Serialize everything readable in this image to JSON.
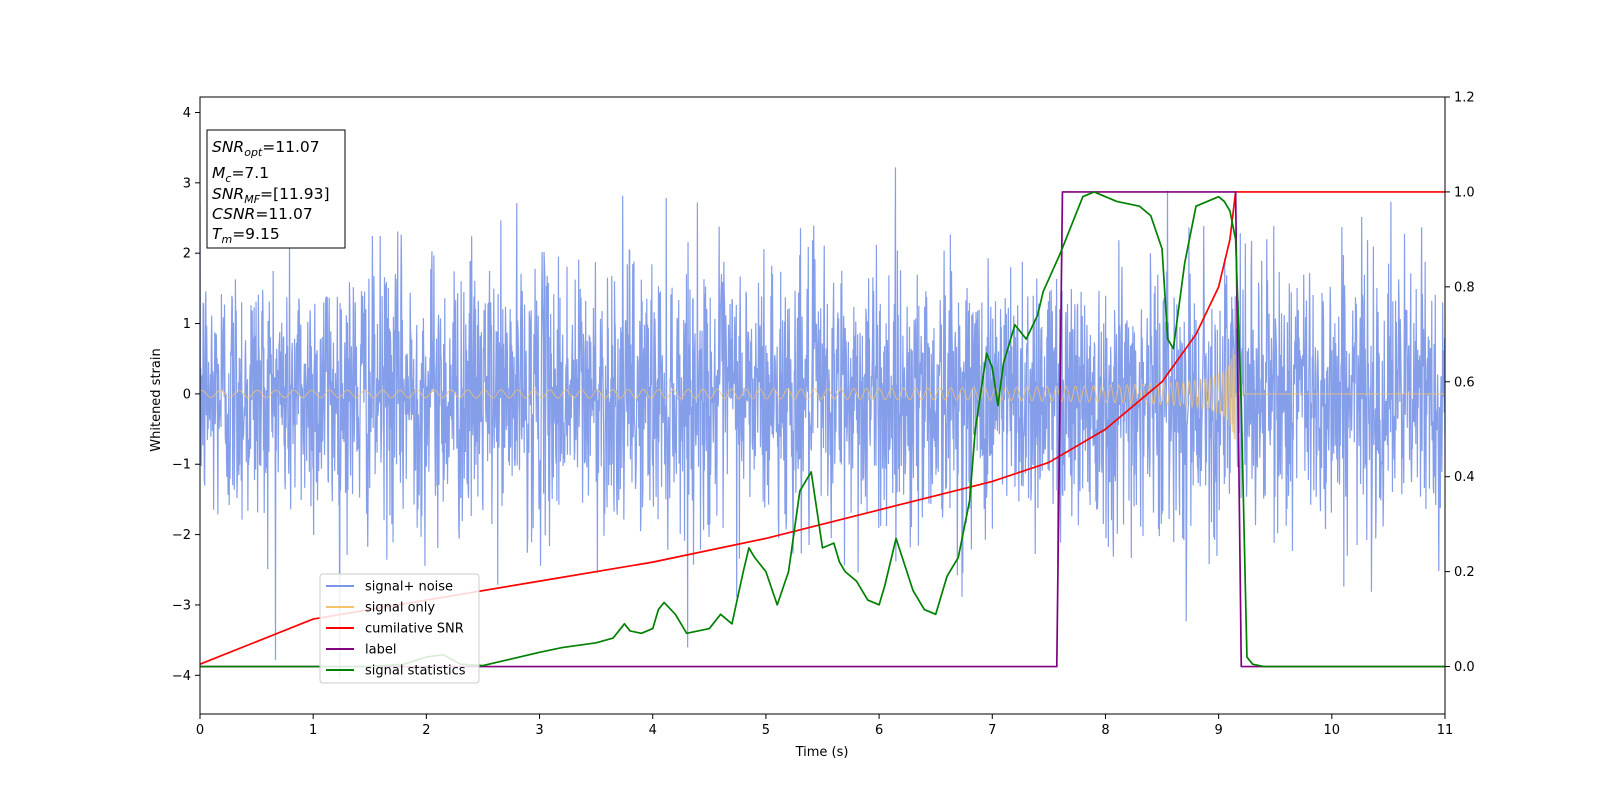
{
  "chart_data": {
    "type": "line",
    "title": "",
    "xlabel": "Time (s)",
    "ylabel": "Whitened strain",
    "xlim": [
      0,
      11
    ],
    "ylim": [
      -4.55,
      4.22
    ],
    "y2lim": [
      -0.1,
      1.2
    ],
    "grid": false,
    "legend_position": "lower-left",
    "xticks": [
      "0",
      "1",
      "2",
      "3",
      "4",
      "5",
      "6",
      "7",
      "8",
      "9",
      "10",
      "11"
    ],
    "yticks": [
      "−4",
      "−3",
      "−2",
      "−1",
      "0",
      "1",
      "2",
      "3",
      "4"
    ],
    "y2ticks": [
      "0.0",
      "0.2",
      "0.4",
      "0.6",
      "0.8",
      "1.0",
      "1.2"
    ],
    "annotation": {
      "lines": [
        {
          "base": "SNR",
          "sub": "opt",
          "value": "=11.07"
        },
        {
          "base": "M",
          "sub": "c",
          "value": "=7.1"
        },
        {
          "base": "SNR",
          "sub": "MF",
          "value": "=[11.93]"
        },
        {
          "base": "CSNR",
          "sub": "",
          "value": "=11.07"
        },
        {
          "base": "T",
          "sub": "m",
          "value": "=9.15"
        }
      ]
    },
    "series": [
      {
        "name": "signal+ noise",
        "color": "#7b96e8",
        "axis": "left",
        "kind": "noise_band",
        "noise_sigma": 1.0,
        "t_end": 11
      },
      {
        "name": "signal only",
        "color": "#f5c36a",
        "axis": "left",
        "kind": "chirp",
        "amp_start": 0.05,
        "amp_peak": 0.9,
        "t_merge": 9.15
      },
      {
        "name": "cumilative SNR",
        "color": "#ff0000",
        "axis": "right",
        "kind": "line",
        "x": [
          0,
          1,
          2,
          3,
          4,
          5,
          6,
          6.5,
          7,
          7.5,
          8,
          8.5,
          8.8,
          9.0,
          9.1,
          9.15,
          11
        ],
        "y": [
          0.005,
          0.1,
          0.14,
          0.18,
          0.22,
          0.27,
          0.33,
          0.36,
          0.39,
          0.43,
          0.5,
          0.6,
          0.7,
          0.8,
          0.9,
          1.0,
          1.0
        ]
      },
      {
        "name": "label",
        "color": "#800080",
        "axis": "right",
        "kind": "line",
        "x": [
          0,
          7.57,
          7.62,
          9.15,
          9.2,
          11
        ],
        "y": [
          0,
          0,
          1,
          1,
          0,
          0
        ]
      },
      {
        "name": "signal statistics",
        "color": "#008000",
        "axis": "right",
        "kind": "line",
        "x": [
          0,
          0.5,
          1,
          1.5,
          1.8,
          2.0,
          2.15,
          2.3,
          2.5,
          3.0,
          3.2,
          3.5,
          3.65,
          3.75,
          3.8,
          3.9,
          4.0,
          4.05,
          4.1,
          4.2,
          4.3,
          4.5,
          4.6,
          4.7,
          4.8,
          4.85,
          4.9,
          5.0,
          5.1,
          5.2,
          5.3,
          5.4,
          5.5,
          5.6,
          5.65,
          5.7,
          5.8,
          5.9,
          6.0,
          6.05,
          6.15,
          6.3,
          6.4,
          6.5,
          6.6,
          6.7,
          6.8,
          6.85,
          6.95,
          7.0,
          7.05,
          7.1,
          7.2,
          7.3,
          7.4,
          7.45,
          7.6,
          7.65,
          7.7,
          7.8,
          7.9,
          8.0,
          8.1,
          8.2,
          8.3,
          8.4,
          8.5,
          8.55,
          8.6,
          8.7,
          8.8,
          8.9,
          9.0,
          9.05,
          9.1,
          9.15,
          9.2,
          9.25,
          9.3,
          9.4,
          11
        ],
        "y": [
          0.0,
          0.0,
          0.0,
          0.0,
          0.005,
          0.02,
          0.025,
          0.005,
          0.002,
          0.03,
          0.04,
          0.05,
          0.06,
          0.09,
          0.075,
          0.07,
          0.08,
          0.12,
          0.135,
          0.11,
          0.07,
          0.08,
          0.11,
          0.09,
          0.2,
          0.25,
          0.23,
          0.2,
          0.13,
          0.2,
          0.37,
          0.41,
          0.25,
          0.26,
          0.22,
          0.2,
          0.18,
          0.14,
          0.13,
          0.17,
          0.27,
          0.16,
          0.12,
          0.11,
          0.19,
          0.23,
          0.35,
          0.5,
          0.66,
          0.63,
          0.55,
          0.64,
          0.72,
          0.69,
          0.74,
          0.79,
          0.87,
          0.9,
          0.93,
          0.99,
          1.0,
          0.99,
          0.98,
          0.975,
          0.97,
          0.95,
          0.88,
          0.69,
          0.67,
          0.85,
          0.97,
          0.98,
          0.99,
          0.98,
          0.96,
          0.9,
          0.55,
          0.02,
          0.005,
          0.0,
          0.0
        ]
      }
    ]
  }
}
